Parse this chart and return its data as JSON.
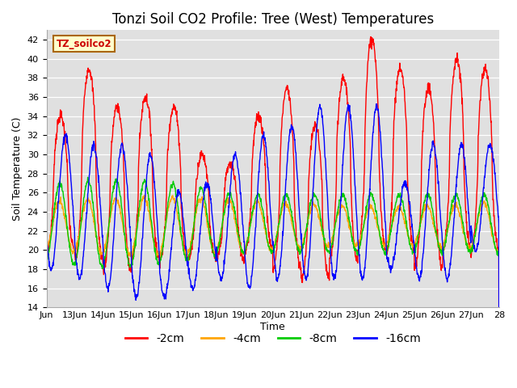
{
  "title": "Tonzi Soil CO2 Profile: Tree (West) Temperatures",
  "xlabel": "Time",
  "ylabel": "Soil Temperature (C)",
  "ylim": [
    14,
    43
  ],
  "yticks": [
    14,
    16,
    18,
    20,
    22,
    24,
    26,
    28,
    30,
    32,
    34,
    36,
    38,
    40,
    42
  ],
  "series_labels": [
    "-2cm",
    "-4cm",
    "-8cm",
    "-16cm"
  ],
  "series_colors": [
    "#ff0000",
    "#ffa500",
    "#00cc00",
    "#0000ff"
  ],
  "legend_label": "TZ_soilco2",
  "background_color": "#e0e0e0",
  "title_fontsize": 12,
  "axis_label_fontsize": 9,
  "tick_label_fontsize": 8,
  "legend_fontsize": 10,
  "n_days": 16,
  "points_per_day": 96,
  "xtick_labels": [
    "Jun",
    "13Jun",
    "14Jun",
    "15Jun",
    "16Jun",
    "17Jun",
    "18Jun",
    "19Jun",
    "20Jun",
    "21Jun",
    "22Jun",
    "23Jun",
    "24Jun",
    "25Jun",
    "26Jun",
    "27Jun",
    "28"
  ]
}
